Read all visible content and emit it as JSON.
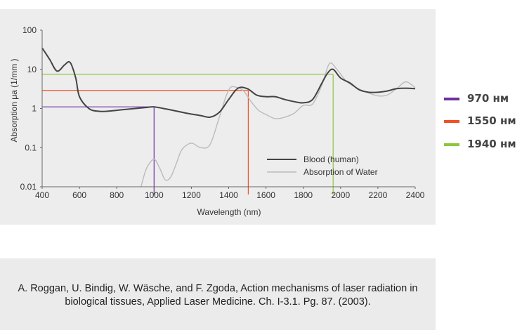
{
  "chart_data": {
    "type": "line",
    "xlabel": "Wavelength (nm)",
    "ylabel": "Absorption μa (1/mm )",
    "xlim": [
      400,
      2400
    ],
    "ylim": [
      0.01,
      100
    ],
    "yscale": "log",
    "x_ticks": [
      "400",
      "600",
      "800",
      "1000",
      "1200",
      "1400",
      "1600",
      "1800",
      "2000",
      "2200",
      "2400"
    ],
    "y_ticks": [
      "100",
      "10",
      "1",
      "0.1",
      "0.01"
    ],
    "grid": false,
    "legend_position": "lower-right",
    "series": [
      {
        "name": "Blood (human)",
        "color": "#444444",
        "x": [
          400,
          440,
          480,
          520,
          550,
          580,
          600,
          650,
          700,
          750,
          800,
          850,
          900,
          950,
          1000,
          1050,
          1100,
          1150,
          1200,
          1250,
          1300,
          1350,
          1400,
          1450,
          1500,
          1550,
          1600,
          1650,
          1700,
          1750,
          1800,
          1850,
          1900,
          1930,
          1960,
          2000,
          2050,
          2100,
          2150,
          2200,
          2250,
          2300,
          2350,
          2400
        ],
        "y": [
          35,
          18,
          9,
          13,
          15,
          6,
          2,
          1.0,
          0.85,
          0.85,
          0.9,
          0.95,
          1.0,
          1.05,
          1.1,
          1.0,
          0.9,
          0.8,
          0.72,
          0.66,
          0.6,
          0.8,
          1.7,
          3.3,
          3.2,
          2.2,
          2.0,
          2.0,
          1.7,
          1.5,
          1.4,
          1.7,
          4.5,
          8,
          10,
          6,
          4.5,
          3,
          2.6,
          2.6,
          2.8,
          3.2,
          3.3,
          3.2
        ]
      },
      {
        "name": "Absorption of Water",
        "color": "#bbbbbb",
        "x": [
          930,
          960,
          1000,
          1030,
          1060,
          1090,
          1120,
          1150,
          1200,
          1250,
          1300,
          1350,
          1400,
          1440,
          1480,
          1520,
          1560,
          1600,
          1650,
          1700,
          1750,
          1800,
          1850,
          1900,
          1940,
          1980,
          2030,
          2080,
          2150,
          2200,
          2250,
          2300,
          2350,
          2400
        ],
        "y": [
          0.01,
          0.03,
          0.05,
          0.03,
          0.015,
          0.018,
          0.04,
          0.09,
          0.13,
          0.1,
          0.12,
          0.6,
          3,
          3.5,
          2.8,
          1.5,
          0.9,
          0.7,
          0.55,
          0.6,
          0.75,
          1.2,
          1.3,
          4,
          14,
          10,
          5,
          3.5,
          2.5,
          2.1,
          2.2,
          3.2,
          4.8,
          3.4
        ]
      }
    ],
    "reference_lines": [
      {
        "label": "970 нм",
        "color": "#7030a0",
        "x": 1000,
        "y": 1.1
      },
      {
        "label": "1550 нм",
        "color": "#f05025",
        "x": 1505,
        "y": 2.9
      },
      {
        "label": "1940 нм",
        "color": "#8cc63f",
        "x": 1960,
        "y": 7.5
      }
    ]
  },
  "citation": "A. Roggan, U. Bindig, W. Wäsche, and F. Zgoda, Action mechanisms of laser radiation in biological tissues, Applied Laser Medicine. Ch. I-3.1. Pg. 87. (2003)."
}
